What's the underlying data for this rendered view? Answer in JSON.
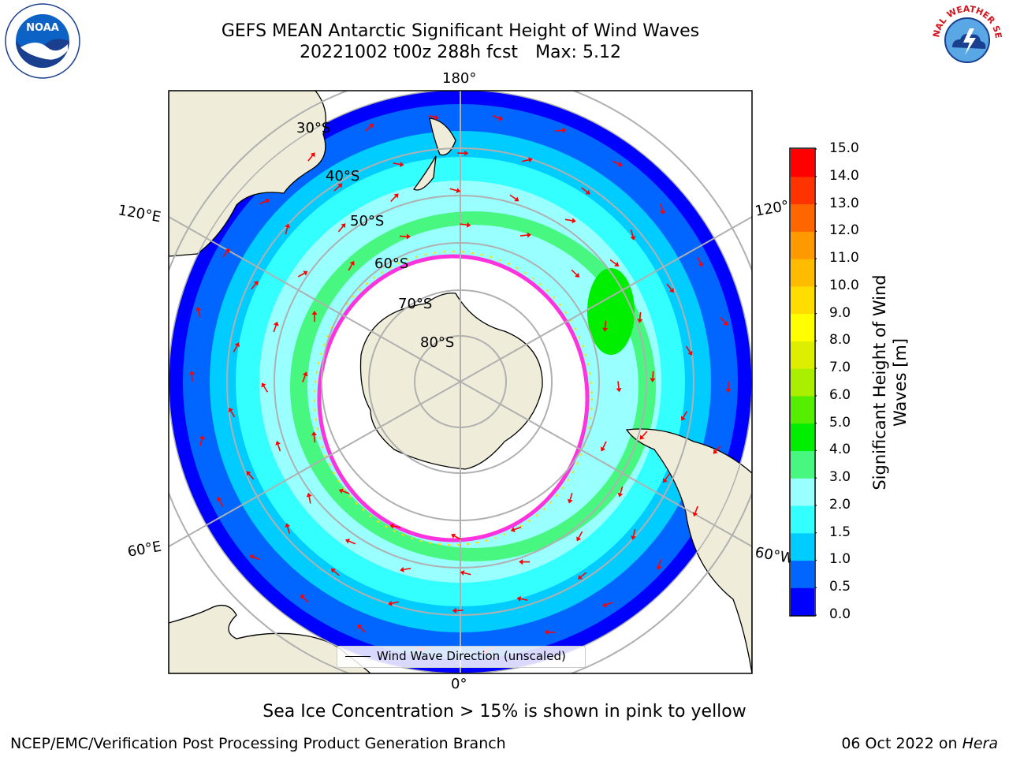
{
  "title_line1": "GEFS MEAN Antarctic Significant Height of Wind Waves",
  "title_date": "20221002 t00z 288h fcst",
  "title_max": "Max: 5.12",
  "longitude_labels": {
    "top": "180°",
    "bottom": "0°",
    "left_upper": "120°E",
    "left_lower": "60°E",
    "right_upper": "120°",
    "right_lower": "60°W"
  },
  "latitude_labels": [
    "30°S",
    "40°S",
    "50°S",
    "60°S",
    "70°S",
    "80°S"
  ],
  "map_legend": "Wind Wave Direction (unscaled)",
  "colorbar": {
    "label_line1": "Significant Height of Wind",
    "label_line2": "Waves [m]",
    "ticks": [
      "0.0",
      "0.5",
      "1.0",
      "1.5",
      "2.0",
      "3.0",
      "4.0",
      "5.0",
      "6.0",
      "7.0",
      "8.0",
      "9.0",
      "10.0",
      "11.0",
      "12.0",
      "13.0",
      "14.0",
      "15.0"
    ],
    "colors": [
      "#0000ff",
      "#0066ff",
      "#00ccff",
      "#33ffff",
      "#99ffff",
      "#48f77f",
      "#00ee00",
      "#55ee00",
      "#aaee00",
      "#ddee00",
      "#ffff00",
      "#ffdd00",
      "#ffbb00",
      "#ff9900",
      "#ff6600",
      "#ff3300",
      "#ff0000"
    ]
  },
  "sea_ice_note": "Sea Ice Concentration > 15% is shown in pink to yellow",
  "footer_left": "NCEP/EMC/Verification Post Processing Product Generation Branch",
  "footer_right_prefix": "06 Oct 2022 on",
  "footer_right_host": "Hera",
  "logos": {
    "left": "NOAA",
    "right": "NATIONAL WEATHER SERVICE"
  },
  "map_colors": {
    "land": "#efedd9",
    "ice": "#ffffff",
    "ice_edge": "#ff33dd",
    "arrow": "#ff0000",
    "grid": "#b0b0b0"
  }
}
